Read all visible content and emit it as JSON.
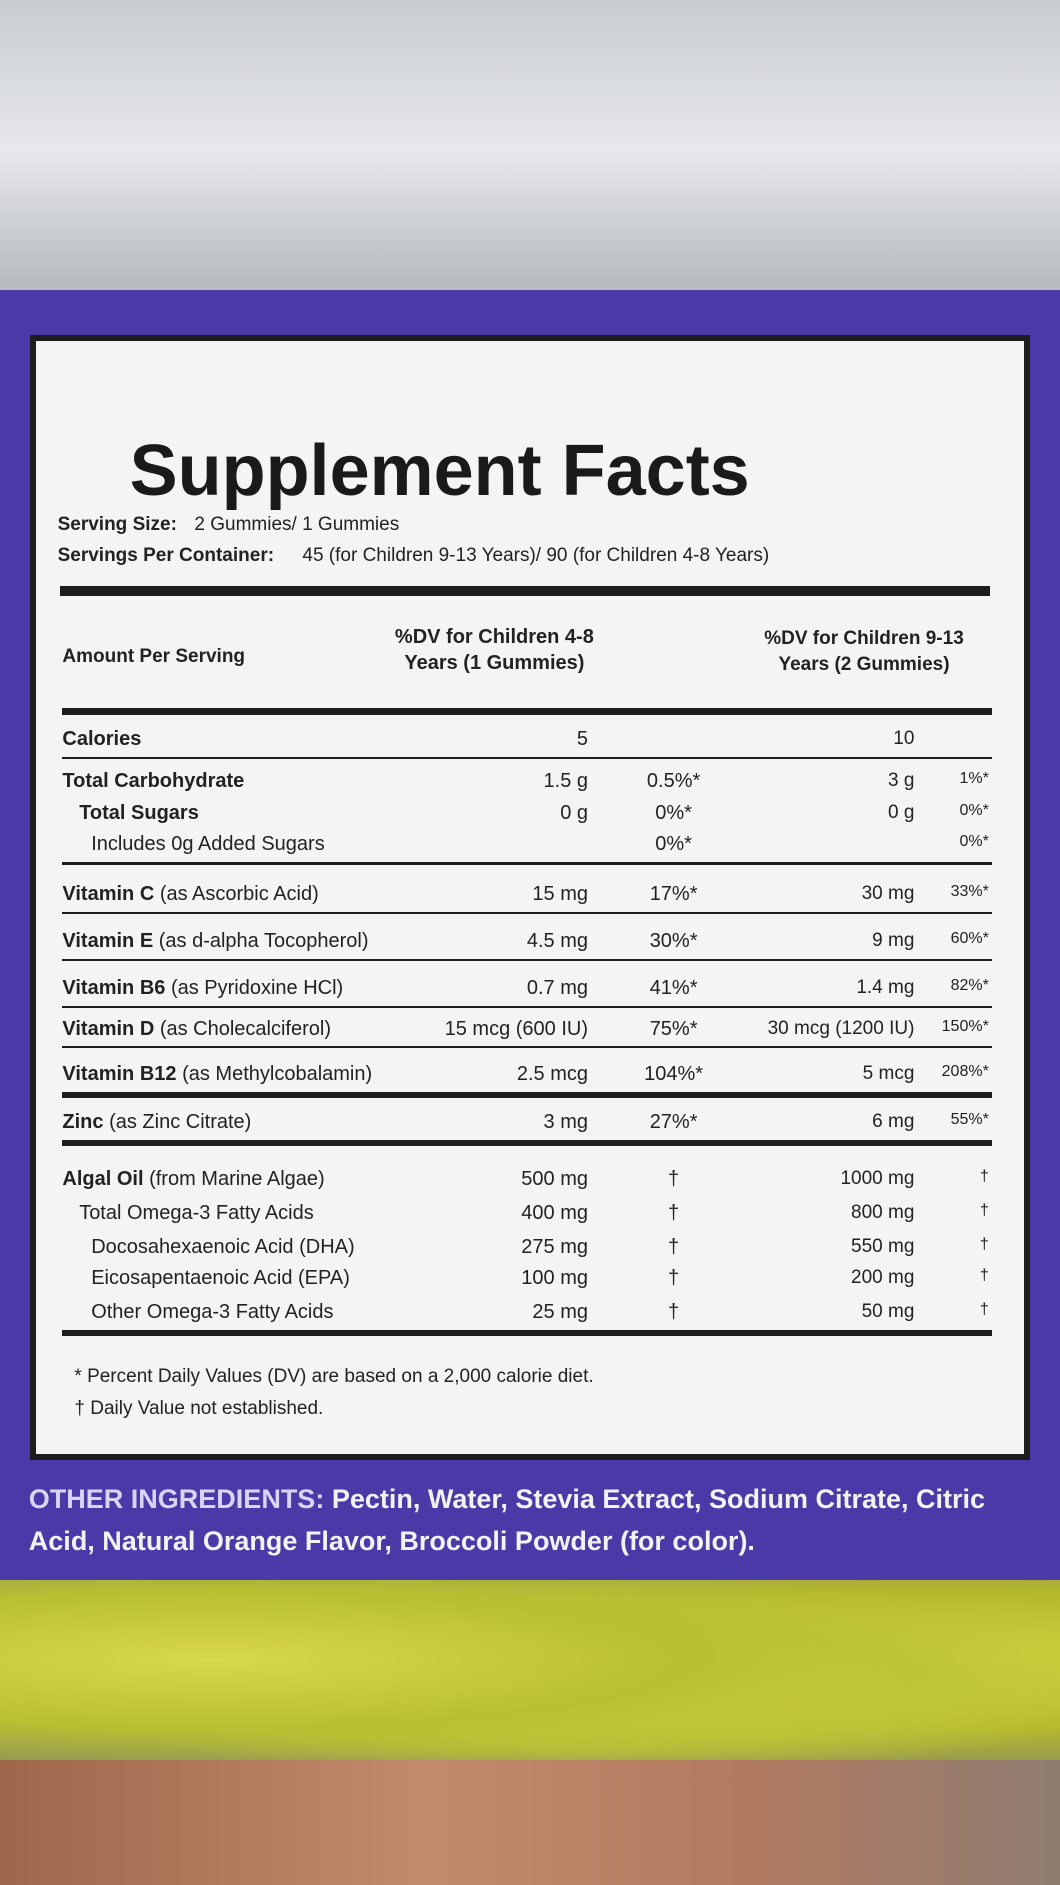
{
  "label": {
    "title": "Supplement Facts",
    "serving_size": {
      "label": "Serving Size:",
      "value": "2 Gummies/ 1 Gummies"
    },
    "servings_per_container": {
      "label": "Servings Per Container:",
      "value": "45 (for Children 9-13 Years)/ 90 (for Children 4-8 Years)"
    },
    "header": {
      "amount": "Amount Per Serving",
      "col1": "%DV for Children 4-8 Years (1 Gummies)",
      "col2": "%DV for Children 9-13 Years (2 Gummies)"
    },
    "rows": [
      {
        "name": "Calories",
        "detail": "",
        "amount1": "5",
        "dv1": "",
        "amount2": "10",
        "dv2": ""
      },
      {
        "name": "Total Carbohydrate",
        "detail": "",
        "amount1": "1.5 g",
        "dv1": "0.5%*",
        "amount2": "3 g",
        "dv2": "1%*"
      },
      {
        "name": "Total Sugars",
        "detail": "",
        "amount1": "0 g",
        "dv1": "0%*",
        "amount2": "0 g",
        "dv2": "0%*"
      },
      {
        "name": "",
        "detail": "Includes 0g Added Sugars",
        "amount1": "",
        "dv1": "0%*",
        "amount2": "",
        "dv2": "0%*"
      },
      {
        "name": "Vitamin C",
        "detail": "(as Ascorbic Acid)",
        "amount1": "15 mg",
        "dv1": "17%*",
        "amount2": "30 mg",
        "dv2": "33%*"
      },
      {
        "name": "Vitamin E",
        "detail": "(as d-alpha Tocopherol)",
        "amount1": "4.5 mg",
        "dv1": "30%*",
        "amount2": "9 mg",
        "dv2": "60%*"
      },
      {
        "name": "Vitamin B6",
        "detail": "(as Pyridoxine HCl)",
        "amount1": "0.7 mg",
        "dv1": "41%*",
        "amount2": "1.4 mg",
        "dv2": "82%*"
      },
      {
        "name": "Vitamin D",
        "detail": "(as Cholecalciferol)",
        "amount1": "15 mcg (600 IU)",
        "dv1": "75%*",
        "amount2": "30 mcg (1200 IU)",
        "dv2": "150%*"
      },
      {
        "name": "Vitamin B12",
        "detail": "(as Methylcobalamin)",
        "amount1": "2.5 mcg",
        "dv1": "104%*",
        "amount2": "5 mcg",
        "dv2": "208%*"
      },
      {
        "name": "Zinc",
        "detail": "(as Zinc Citrate)",
        "amount1": "3 mg",
        "dv1": "27%*",
        "amount2": "6 mg",
        "dv2": "55%*"
      },
      {
        "name": "Algal Oil",
        "detail": "(from Marine Algae)",
        "amount1": "500 mg",
        "dv1": "†",
        "amount2": "1000 mg",
        "dv2": "†"
      },
      {
        "name": "",
        "detail": "Total Omega-3 Fatty Acids",
        "amount1": "400 mg",
        "dv1": "†",
        "amount2": "800 mg",
        "dv2": "†"
      },
      {
        "name": "",
        "detail": "Docosahexaenoic Acid (DHA)",
        "amount1": "275 mg",
        "dv1": "†",
        "amount2": "550 mg",
        "dv2": "†"
      },
      {
        "name": "",
        "detail": "Eicosapentaenoic Acid (EPA)",
        "amount1": "100 mg",
        "dv1": "†",
        "amount2": "200 mg",
        "dv2": "†"
      },
      {
        "name": "",
        "detail": "Other Omega-3 Fatty Acids",
        "amount1": "25 mg",
        "dv1": "†",
        "amount2": "50 mg",
        "dv2": "†"
      }
    ],
    "footnotes": [
      "* Percent Daily Values (DV) are based on a 2,000 calorie diet.",
      "† Daily Value not established."
    ],
    "other_ingredients": {
      "label": "OTHER INGREDIENTS:",
      "text": "Pectin, Water, Stevia Extract, Sodium Citrate, Citric Acid, Natural Orange Flavor, Broccoli Powder (for color)."
    }
  }
}
